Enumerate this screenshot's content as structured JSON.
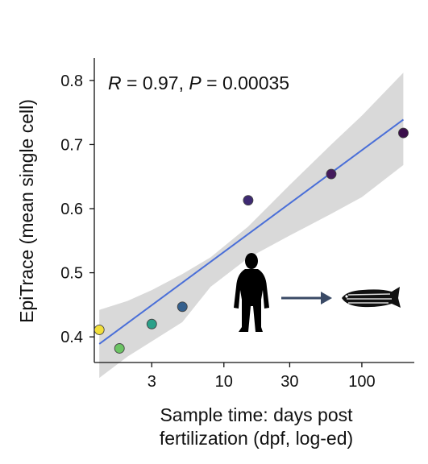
{
  "chart_data": {
    "type": "scatter",
    "title": "",
    "ylabel": "EpiTrace (mean single cell)",
    "xlabel_lines": [
      "Sample time: days post",
      "fertilization (dpf, log-ed)"
    ],
    "x_scale": "log",
    "xlim": [
      1.15,
      240
    ],
    "ylim": [
      0.36,
      0.835
    ],
    "x_ticks": [
      {
        "value": 3,
        "label": "3"
      },
      {
        "value": 10,
        "label": "10"
      },
      {
        "value": 30,
        "label": "30"
      },
      {
        "value": 100,
        "label": "100"
      }
    ],
    "y_ticks": [
      {
        "value": 0.4,
        "label": "0.4"
      },
      {
        "value": 0.5,
        "label": "0.5"
      },
      {
        "value": 0.6,
        "label": "0.6"
      },
      {
        "value": 0.7,
        "label": "0.7"
      },
      {
        "value": 0.8,
        "label": "0.8"
      }
    ],
    "points": [
      {
        "x": 1.25,
        "y": 0.411,
        "color": "#f2df3a"
      },
      {
        "x": 1.75,
        "y": 0.382,
        "color": "#6cc464"
      },
      {
        "x": 3.0,
        "y": 0.42,
        "color": "#2ba089"
      },
      {
        "x": 5.0,
        "y": 0.447,
        "color": "#345f8d"
      },
      {
        "x": 15.0,
        "y": 0.613,
        "color": "#3e2a72"
      },
      {
        "x": 60.0,
        "y": 0.654,
        "color": "#441a5c"
      },
      {
        "x": 200.0,
        "y": 0.718,
        "color": "#3b0f4b"
      }
    ],
    "fit": {
      "x": [
        1.25,
        200
      ],
      "y": [
        0.389,
        0.739
      ],
      "color": "#4a6fd8"
    },
    "confidence_band": {
      "x": [
        1.25,
        2,
        3,
        5,
        8,
        15,
        30,
        60,
        100,
        200
      ],
      "upper": [
        0.442,
        0.456,
        0.473,
        0.498,
        0.524,
        0.572,
        0.637,
        0.7,
        0.745,
        0.812
      ],
      "lower": [
        0.336,
        0.369,
        0.393,
        0.423,
        0.478,
        0.523,
        0.558,
        0.592,
        0.618,
        0.668
      ],
      "color": "#d9d9d9"
    },
    "annotation": {
      "R_symbol": "R",
      "R_value": " = 0.97, ",
      "P_symbol": "P",
      "P_value": " = 0.00035"
    },
    "grid": false,
    "icons": [
      "human-silhouette-icon",
      "arrow-right-icon",
      "zebrafish-icon"
    ]
  }
}
